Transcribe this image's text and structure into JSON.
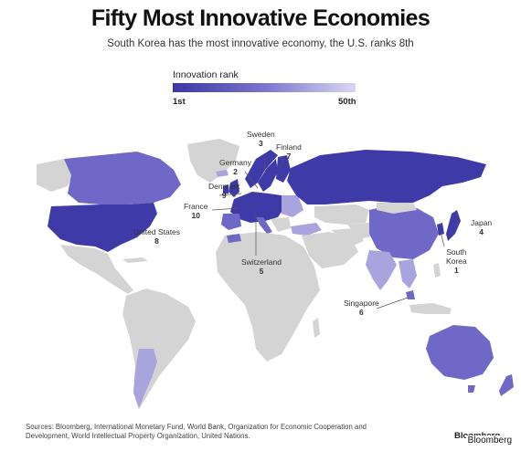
{
  "title": "Fifty Most Innovative Economies",
  "subtitle": "South Korea has the most innovative economy, the U.S. ranks 8th",
  "legend": {
    "title": "Innovation rank",
    "min_label": "1st",
    "max_label": "50th",
    "colors": [
      "#3b37a6",
      "#7c74cf",
      "#d9d6f3"
    ]
  },
  "colors": {
    "non_ranked": "#d4d4d4",
    "ocean": "#ffffff",
    "rank_dark": "#3e3aa8",
    "rank_mid": "#6f68c6",
    "rank_light": "#a9a3de"
  },
  "labels": {
    "sweden": {
      "name": "Sweden",
      "rank": "3"
    },
    "finland": {
      "name": "Finland",
      "rank": "7"
    },
    "germany": {
      "name": "Germany",
      "rank": "2"
    },
    "denmark": {
      "name": "Denmark",
      "rank": "9"
    },
    "france": {
      "name": "France",
      "rank": "10"
    },
    "united_states": {
      "name": "United States",
      "rank": "8"
    },
    "switzerland": {
      "name": "Switzerland",
      "rank": "5"
    },
    "japan": {
      "name": "Japan",
      "rank": "4"
    },
    "south_korea": {
      "name_line1": "South",
      "name_line2": "Korea",
      "rank": "1"
    },
    "singapore": {
      "name": "Singapore",
      "rank": "6"
    }
  },
  "sources": "Sources: Bloomberg, International Monetary Fund, World Bank, Organization for Economic Cooperation and Development, World Intellectual Property Organization, United Nations.",
  "logo_partial": "Bloomberg",
  "logo": "Bloomberg"
}
